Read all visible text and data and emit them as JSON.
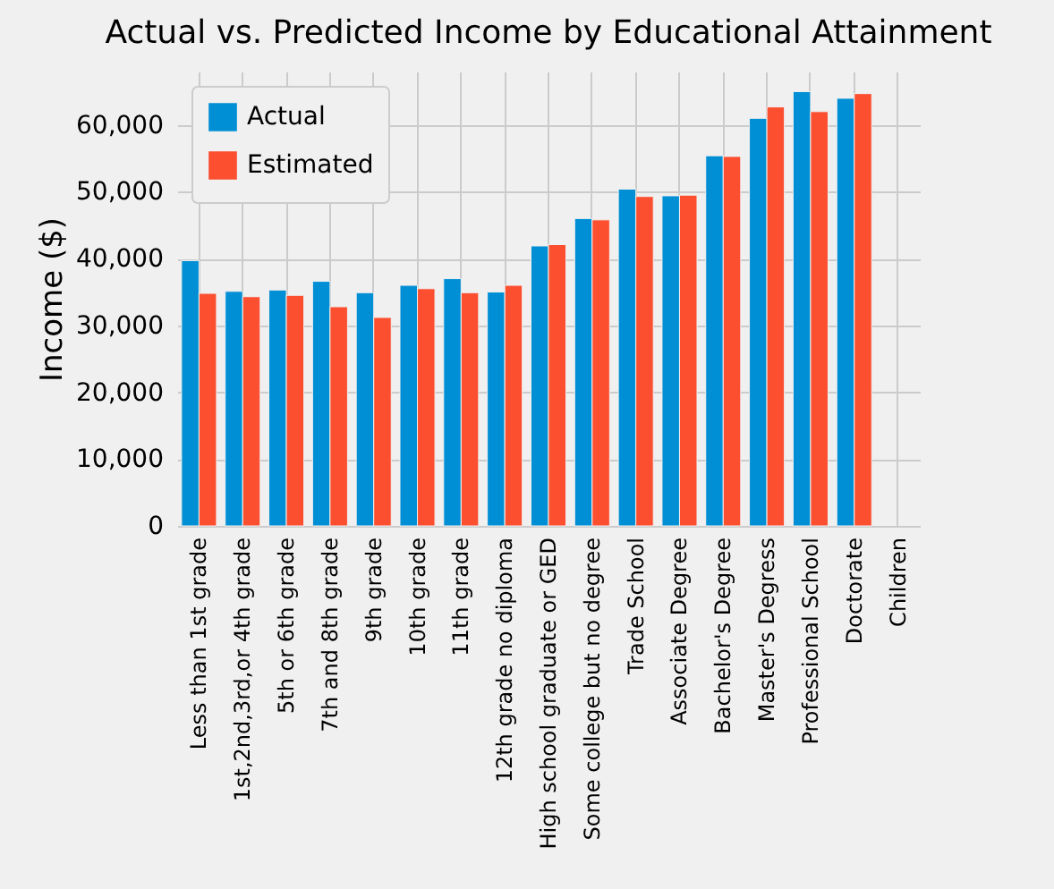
{
  "chart_data": {
    "type": "bar",
    "title": "Actual vs. Predicted Income by Educational Attainment",
    "ylabel": "Income ($)",
    "categories": [
      "Less than 1st grade",
      "1st,2nd,3rd,or 4th grade",
      "5th or 6th grade",
      "7th and 8th grade",
      "9th grade",
      "10th grade",
      "11th grade",
      "12th grade no diploma",
      "High school graduate or GED",
      "Some college but no degree",
      "Trade School",
      "Associate Degree",
      "Bachelor's Degree",
      "Master's Degress",
      "Professional School",
      "Doctorate",
      "Children"
    ],
    "series": [
      {
        "name": "Actual",
        "color": "#008fd5",
        "values": [
          39700,
          35100,
          35300,
          36600,
          34900,
          36000,
          37000,
          35000,
          41900,
          46000,
          50400,
          49400,
          55400,
          61000,
          65000,
          64000,
          null
        ]
      },
      {
        "name": "Estimated",
        "color": "#fc4f30",
        "values": [
          34800,
          34300,
          34500,
          32800,
          31200,
          35500,
          34900,
          36000,
          42100,
          45800,
          49300,
          49500,
          55300,
          62700,
          62000,
          64700,
          null
        ]
      }
    ],
    "ylim": [
      0,
      68000
    ],
    "yticks": [
      0,
      {
        "value": 10000,
        "label": "10,000"
      },
      {
        "value": 20000,
        "label": "20,000"
      },
      {
        "value": 30000,
        "label": "30,000"
      },
      {
        "value": 40000,
        "label": "40,000"
      },
      {
        "value": 50000,
        "label": "50,000"
      },
      {
        "value": 60000,
        "label": "60,000"
      }
    ],
    "grid": true,
    "legend": "top left"
  }
}
